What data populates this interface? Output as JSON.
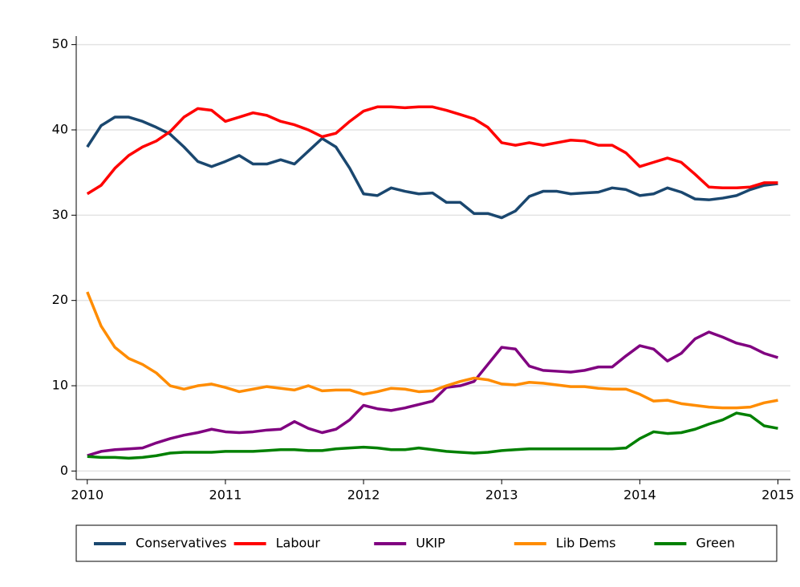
{
  "chart_data": {
    "type": "line",
    "x": [
      2010.0,
      2010.1,
      2010.2,
      2010.3,
      2010.4,
      2010.5,
      2010.6,
      2010.7,
      2010.8,
      2010.9,
      2011.0,
      2011.1,
      2011.2,
      2011.3,
      2011.4,
      2011.5,
      2011.6,
      2011.7,
      2011.8,
      2011.9,
      2012.0,
      2012.1,
      2012.2,
      2012.3,
      2012.4,
      2012.5,
      2012.6,
      2012.7,
      2012.8,
      2012.9,
      2013.0,
      2013.1,
      2013.2,
      2013.3,
      2013.4,
      2013.5,
      2013.6,
      2013.7,
      2013.8,
      2013.9,
      2014.0,
      2014.1,
      2014.2,
      2014.3,
      2014.4,
      2014.5,
      2014.6,
      2014.7,
      2014.8,
      2014.9,
      2015.0
    ],
    "series": [
      {
        "name": "Conservatives",
        "color": "#1a476f",
        "values": [
          38,
          40.5,
          41.5,
          41.5,
          41,
          40.3,
          39.5,
          38,
          36.3,
          35.7,
          36.3,
          37,
          36,
          36,
          36.5,
          36,
          37.5,
          39,
          38,
          35.5,
          32.5,
          32.3,
          33.2,
          32.8,
          32.5,
          32.6,
          31.5,
          31.5,
          30.2,
          30.2,
          29.7,
          30.5,
          32.2,
          32.8,
          32.8,
          32.5,
          32.6,
          32.7,
          33.2,
          33,
          32.3,
          32.5,
          33.2,
          32.7,
          31.9,
          31.8,
          32,
          32.3,
          33,
          33.5,
          33.7
        ]
      },
      {
        "name": "Labour",
        "color": "#ff0000",
        "values": [
          32.5,
          33.5,
          35.5,
          37,
          38,
          38.7,
          39.8,
          41.5,
          42.5,
          42.3,
          41,
          41.5,
          42,
          41.7,
          41,
          40.6,
          40,
          39.2,
          39.6,
          41,
          42.2,
          42.7,
          42.7,
          42.6,
          42.7,
          42.7,
          42.3,
          41.8,
          41.3,
          40.3,
          38.5,
          38.2,
          38.5,
          38.2,
          38.5,
          38.8,
          38.7,
          38.2,
          38.2,
          37.3,
          35.7,
          36.2,
          36.7,
          36.2,
          34.8,
          33.3,
          33.2,
          33.2,
          33.3,
          33.8,
          33.8
        ]
      },
      {
        "name": "UKIP",
        "color": "#800080",
        "values": [
          1.8,
          2.3,
          2.5,
          2.6,
          2.7,
          3.3,
          3.8,
          4.2,
          4.5,
          4.9,
          4.6,
          4.5,
          4.6,
          4.8,
          4.9,
          5.8,
          5,
          4.5,
          4.9,
          6,
          7.7,
          7.3,
          7.1,
          7.4,
          7.8,
          8.2,
          9.8,
          10,
          10.5,
          12.5,
          14.5,
          14.3,
          12.3,
          11.8,
          11.7,
          11.6,
          11.8,
          12.2,
          12.2,
          13.5,
          14.7,
          14.3,
          12.9,
          13.8,
          15.5,
          16.3,
          15.7,
          15,
          14.6,
          13.8,
          13.3
        ]
      },
      {
        "name": "Lib Dems",
        "color": "#ff8c00",
        "values": [
          21,
          17,
          14.5,
          13.2,
          12.5,
          11.5,
          10,
          9.6,
          10,
          10.2,
          9.8,
          9.3,
          9.6,
          9.9,
          9.7,
          9.5,
          10,
          9.4,
          9.5,
          9.5,
          9,
          9.3,
          9.7,
          9.6,
          9.3,
          9.4,
          10,
          10.5,
          10.9,
          10.7,
          10.2,
          10.1,
          10.4,
          10.3,
          10.1,
          9.9,
          9.9,
          9.7,
          9.6,
          9.6,
          9,
          8.2,
          8.3,
          7.9,
          7.7,
          7.5,
          7.4,
          7.4,
          7.5,
          8,
          8.3
        ]
      },
      {
        "name": "Green",
        "color": "#008000",
        "values": [
          1.7,
          1.6,
          1.6,
          1.5,
          1.6,
          1.8,
          2.1,
          2.2,
          2.2,
          2.2,
          2.3,
          2.3,
          2.3,
          2.4,
          2.5,
          2.5,
          2.4,
          2.4,
          2.6,
          2.7,
          2.8,
          2.7,
          2.5,
          2.5,
          2.7,
          2.5,
          2.3,
          2.2,
          2.1,
          2.2,
          2.4,
          2.5,
          2.6,
          2.6,
          2.6,
          2.6,
          2.6,
          2.6,
          2.6,
          2.7,
          3.8,
          4.6,
          4.4,
          4.5,
          4.9,
          5.5,
          6,
          6.8,
          6.5,
          5.3,
          5
        ]
      }
    ],
    "xlim": [
      2009.92,
      2015.09
    ],
    "xticks": [
      2010,
      2011,
      2012,
      2013,
      2014,
      2015
    ],
    "ylim": [
      -1,
      51
    ],
    "yticks": [
      0,
      10,
      20,
      30,
      40,
      50
    ],
    "grid": true,
    "legend": "bottom"
  }
}
